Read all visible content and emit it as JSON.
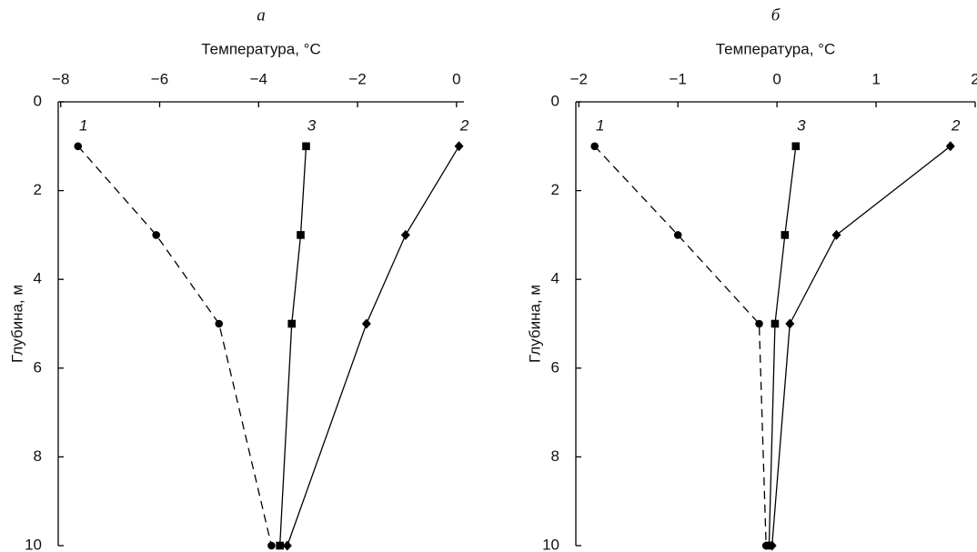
{
  "chart_data": [
    {
      "type": "line",
      "title": "а",
      "xlabel": "Температура, °C",
      "ylabel": "Глубина, м",
      "xlim": [
        -8.05,
        0.15
      ],
      "xticks": [
        {
          "value": -8,
          "label": "−8"
        },
        {
          "value": -6,
          "label": "−6"
        },
        {
          "value": -4,
          "label": "−4"
        },
        {
          "value": -2,
          "label": "−2"
        },
        0
      ],
      "ylim": [
        0,
        10
      ],
      "yticks": [
        0,
        2,
        4,
        6,
        8,
        10
      ],
      "y_inverted": true,
      "series": [
        {
          "name": "1",
          "color": "#000000",
          "marker": "circle",
          "linestyle": "dashed",
          "x": [
            -7.65,
            -6.07,
            -4.8,
            -3.74
          ],
          "values": [
            1,
            3,
            5,
            10
          ]
        },
        {
          "name": "2",
          "color": "#000000",
          "marker": "diamond",
          "linestyle": "solid",
          "x": [
            0.05,
            -1.03,
            -1.82,
            -3.42
          ],
          "values": [
            1,
            3,
            5,
            10
          ]
        },
        {
          "name": "3",
          "color": "#000000",
          "marker": "square",
          "linestyle": "solid",
          "x": [
            -3.04,
            -3.15,
            -3.33,
            -3.57
          ],
          "values": [
            1,
            3,
            5,
            10
          ]
        }
      ]
    },
    {
      "type": "line",
      "title": "б",
      "xlabel": "Температура, °C",
      "ylabel": "Глубина, м",
      "xlim": [
        -2.03,
        2.0
      ],
      "xticks": [
        {
          "value": -2,
          "label": "−2"
        },
        {
          "value": -1,
          "label": "−1"
        },
        0,
        1,
        2
      ],
      "ylim": [
        0,
        10
      ],
      "yticks": [
        0,
        2,
        4,
        6,
        8,
        10
      ],
      "y_inverted": true,
      "series": [
        {
          "name": "1",
          "color": "#000000",
          "marker": "circle",
          "linestyle": "dashed",
          "x": [
            -1.84,
            -1.0,
            -0.18,
            -0.11
          ],
          "values": [
            1,
            3,
            5,
            10
          ]
        },
        {
          "name": "2",
          "color": "#000000",
          "marker": "diamond",
          "linestyle": "solid",
          "x": [
            1.75,
            0.6,
            0.13,
            -0.05
          ],
          "values": [
            1,
            3,
            5,
            10
          ]
        },
        {
          "name": "3",
          "color": "#000000",
          "marker": "square",
          "linestyle": "solid",
          "x": [
            0.19,
            0.08,
            -0.02,
            -0.08
          ],
          "values": [
            1,
            3,
            5,
            10
          ]
        }
      ]
    }
  ]
}
